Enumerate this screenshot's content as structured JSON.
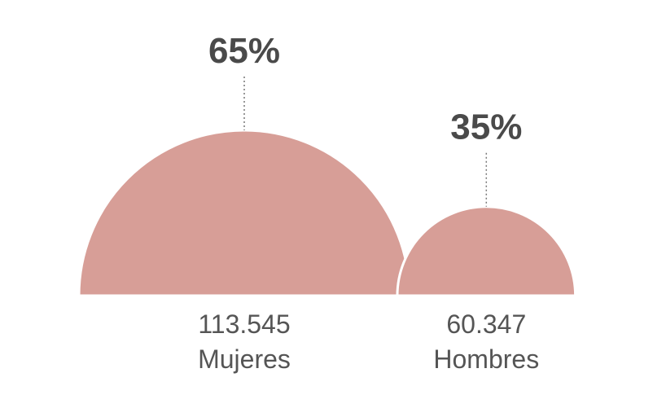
{
  "chart_data": {
    "type": "semicircle",
    "categories": [
      "Mujeres",
      "Hombres"
    ],
    "values": [
      65,
      35
    ],
    "value_labels": [
      "65%",
      "35%"
    ],
    "count_labels": [
      "113.545",
      "60.347"
    ],
    "color": "#d79e97"
  }
}
